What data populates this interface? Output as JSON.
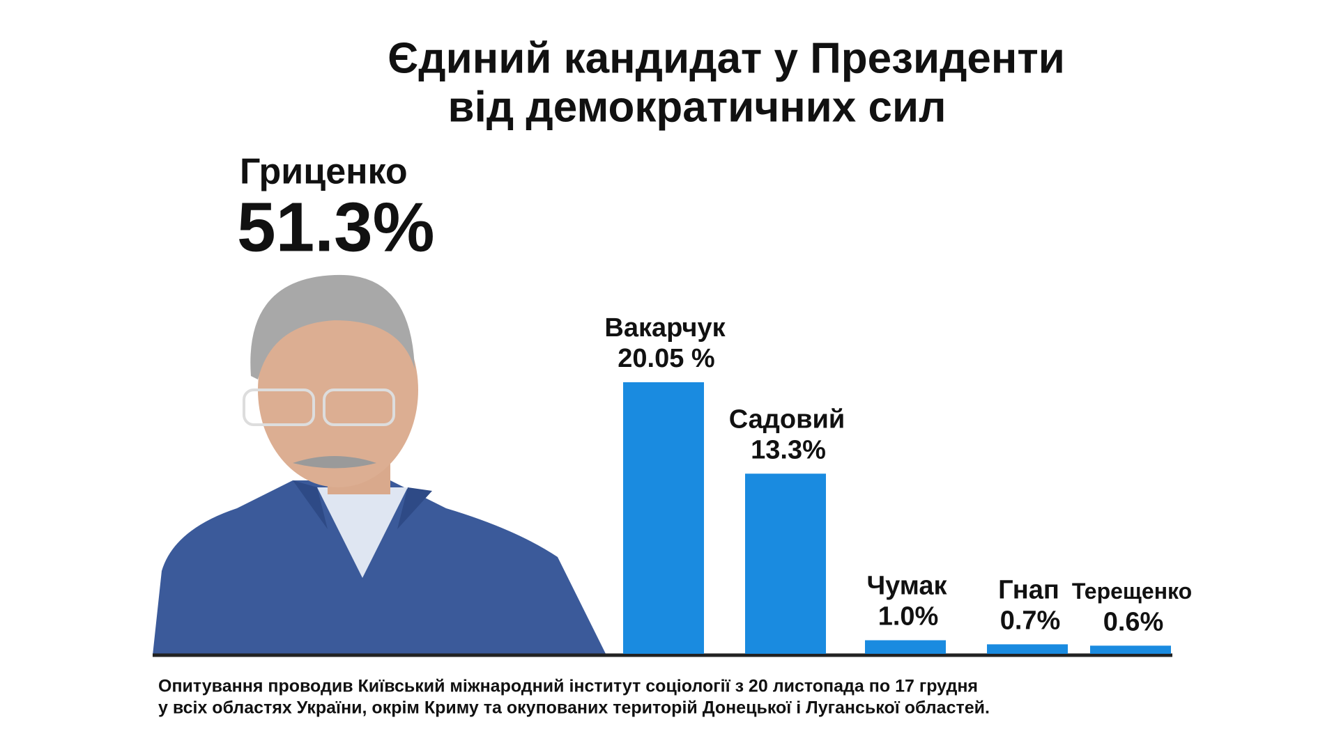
{
  "chart_data": {
    "type": "bar",
    "title": [
      "Єдиний кандидат у Президенти",
      "від демократичних сил"
    ],
    "leader": {
      "name": "Гриценко",
      "value": 51.3,
      "value_label": "51.3%"
    },
    "categories": [
      "Вакарчук",
      "Садовий",
      "Чумак",
      "Гнап",
      "Терещенко"
    ],
    "values": [
      20.05,
      13.3,
      1.0,
      0.7,
      0.6
    ],
    "value_labels": [
      "20.05 %",
      "13.3%",
      "1.0%",
      "0.7%",
      "0.6%"
    ],
    "color": "#1a8be0",
    "note": [
      "Опитування проводив Київський міжнародний інститут соціології з 20 листопада по 17 грудня",
      "у всіх областях України, окрім Криму та окупованих територій Донецької і Луганської областей."
    ]
  }
}
